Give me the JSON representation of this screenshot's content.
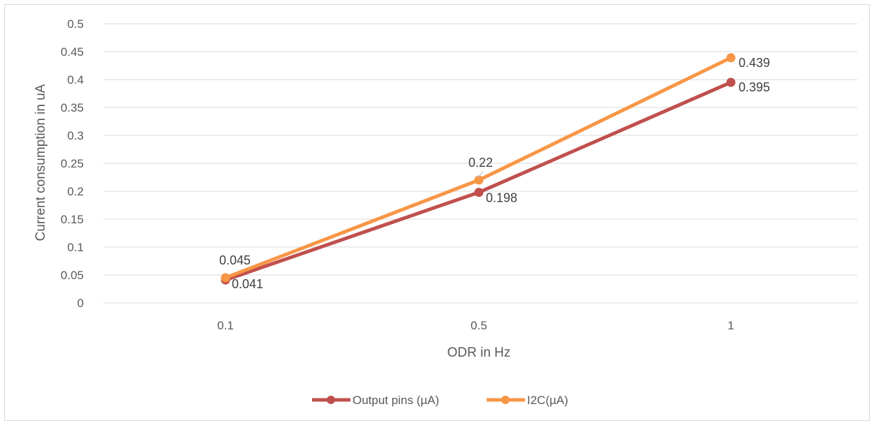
{
  "chart_data": {
    "type": "line",
    "title": "",
    "xlabel": "ODR in Hz",
    "ylabel": "Current consumption in uA",
    "categories": [
      "0.1",
      "0.5",
      "1"
    ],
    "ylim": [
      0,
      0.5
    ],
    "yticks": [
      "0",
      "0.05",
      "0.1",
      "0.15",
      "0.2",
      "0.25",
      "0.3",
      "0.35",
      "0.4",
      "0.45",
      "0.5"
    ],
    "grid": true,
    "legend_position": "bottom",
    "series": [
      {
        "name": "Output pins (µA)",
        "values": [
          0.041,
          0.198,
          0.395
        ],
        "labels": [
          "0.041",
          "0.198",
          "0.395"
        ],
        "color": "#C0504D"
      },
      {
        "name": "I2C(µA)",
        "values": [
          0.045,
          0.22,
          0.439
        ],
        "labels": [
          "0.045",
          "0.22",
          "0.439"
        ],
        "color": "#F79646"
      }
    ]
  }
}
